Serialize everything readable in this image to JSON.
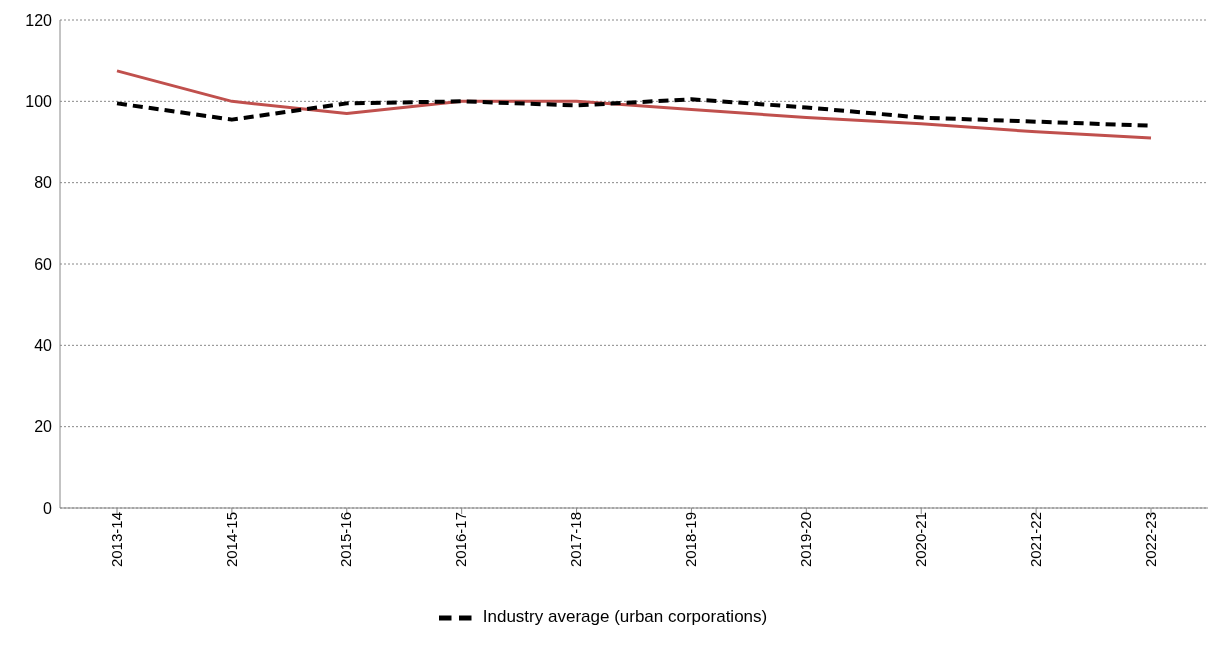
{
  "chart_data": {
    "type": "line",
    "categories": [
      "2013-14",
      "2014-15",
      "2015-16",
      "2016-17",
      "2017-18",
      "2018-19",
      "2019-20",
      "2020-21",
      "2021-22",
      "2022-23"
    ],
    "series": [
      {
        "color": "#c0504d",
        "line_style": "solid",
        "values": [
          107.5,
          100,
          97,
          100,
          100,
          98,
          96,
          94.5,
          92.5,
          91
        ]
      },
      {
        "name": "Industry average (urban corporations)",
        "color": "#000000",
        "line_style": "dashed",
        "values": [
          99.5,
          95.5,
          99.5,
          100,
          99,
          100.5,
          98.5,
          96,
          95,
          94
        ]
      }
    ],
    "ylim": [
      0,
      120
    ],
    "yticks": [
      0,
      20,
      40,
      60,
      80,
      100,
      120
    ],
    "grid": "y",
    "legend": "bottom",
    "marker": "none"
  }
}
